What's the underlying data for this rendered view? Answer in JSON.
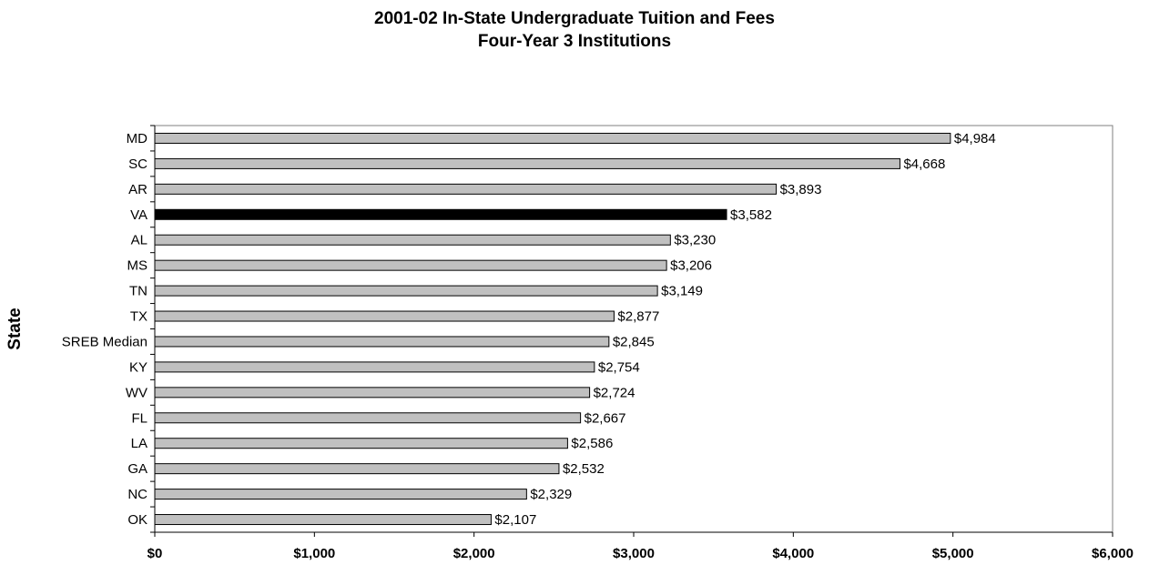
{
  "chart_data": {
    "type": "bar",
    "orientation": "horizontal",
    "title": [
      "2001-02 In-State Undergraduate Tuition and Fees",
      "Four-Year 3 Institutions"
    ],
    "ylabel": "State",
    "xlabel": "",
    "categories": [
      "MD",
      "SC",
      "AR",
      "VA",
      "AL",
      "MS",
      "TN",
      "TX",
      "SREB Median",
      "KY",
      "WV",
      "FL",
      "LA",
      "GA",
      "NC",
      "OK"
    ],
    "values": [
      4984,
      4668,
      3893,
      3582,
      3230,
      3206,
      3149,
      2877,
      2845,
      2754,
      2724,
      2667,
      2586,
      2532,
      2329,
      2107
    ],
    "value_labels": [
      "$4,984",
      "$4,668",
      "$3,893",
      "$3,582",
      "$3,230",
      "$3,206",
      "$3,149",
      "$2,877",
      "$2,845",
      "$2,754",
      "$2,724",
      "$2,667",
      "$2,586",
      "$2,532",
      "$2,329",
      "$2,107"
    ],
    "highlight": "VA",
    "xlim": [
      0,
      6000
    ],
    "xticks": [
      0,
      1000,
      2000,
      3000,
      4000,
      5000,
      6000
    ],
    "xtick_labels": [
      "$0",
      "$1,000",
      "$2,000",
      "$3,000",
      "$4,000",
      "$5,000",
      "$6,000"
    ],
    "grid": false,
    "colors": {
      "bar": "#c0c0c0",
      "highlight": "#000000",
      "outline": "#000000"
    }
  }
}
